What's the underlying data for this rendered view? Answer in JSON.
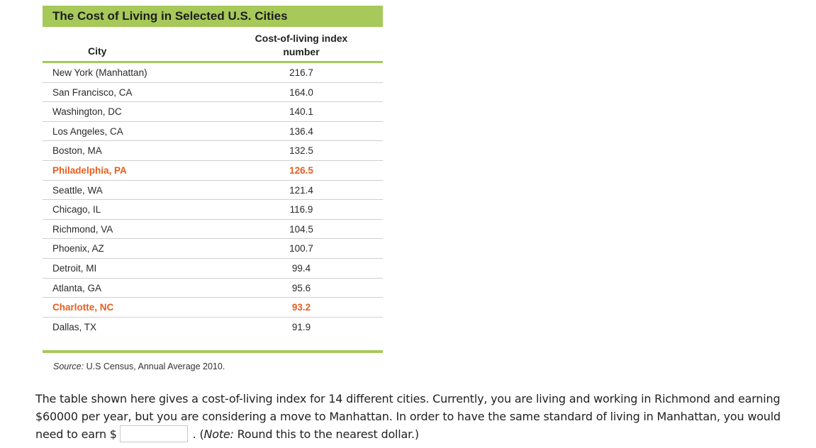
{
  "table": {
    "title": "The Cost of Living in Selected U.S. Cities",
    "col_city": "City",
    "col_index_line1": "Cost-of-living index",
    "col_index_line2": "number",
    "rows": [
      {
        "city": "New York (Manhattan)",
        "index": "216.7",
        "highlight": false
      },
      {
        "city": "San Francisco, CA",
        "index": "164.0",
        "highlight": false
      },
      {
        "city": "Washington, DC",
        "index": "140.1",
        "highlight": false
      },
      {
        "city": "Los Angeles, CA",
        "index": "136.4",
        "highlight": false
      },
      {
        "city": "Boston, MA",
        "index": "132.5",
        "highlight": false
      },
      {
        "city": "Philadelphia, PA",
        "index": "126.5",
        "highlight": true
      },
      {
        "city": "Seattle, WA",
        "index": "121.4",
        "highlight": false
      },
      {
        "city": "Chicago, IL",
        "index": "116.9",
        "highlight": false
      },
      {
        "city": "Richmond, VA",
        "index": "104.5",
        "highlight": false
      },
      {
        "city": "Phoenix, AZ",
        "index": "100.7",
        "highlight": false
      },
      {
        "city": "Detroit, MI",
        "index": "99.4",
        "highlight": false
      },
      {
        "city": "Atlanta, GA",
        "index": "95.6",
        "highlight": false
      },
      {
        "city": "Charlotte, NC",
        "index": "93.2",
        "highlight": true
      },
      {
        "city": "Dallas, TX",
        "index": "91.9",
        "highlight": false
      }
    ],
    "source_label": "Source:",
    "source_text": " U.S Census, Annual Average 2010.",
    "colors": {
      "accent_green": "#a6c95a",
      "highlight_orange": "#e85d1e"
    }
  },
  "question": {
    "text_before": "The table shown here gives a cost-of-living index for 14 different cities. Currently, you are living and working in Richmond and earning $60000 per year, but you are considering a move to Manhattan.  In order to have the same standard of living in Manhattan, you would need to earn  $",
    "answer_value": "",
    "text_after_1": " . (",
    "note_label": "Note:",
    "text_after_2": " Round this to the nearest dollar.)"
  }
}
